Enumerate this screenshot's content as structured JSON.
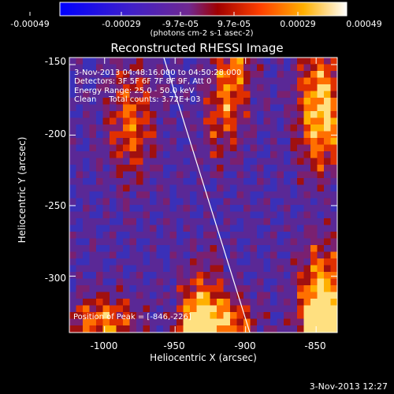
{
  "chart_data": {
    "type": "heatmap",
    "title": "Reconstructed RHESSI Image",
    "xlabel": "Heliocentric X (arcsec)",
    "ylabel": "Heliocentric Y (arcsec)",
    "xlim": [
      -1025,
      -835
    ],
    "ylim": [
      -340,
      -145
    ],
    "xticks": [
      "-1000",
      "-950",
      "-900",
      "-850"
    ],
    "yticks": [
      "-150",
      "-200",
      "-250",
      "-300"
    ],
    "colorbar": {
      "range": [
        -0.00049,
        0.00049
      ],
      "tick_labels": [
        "-0.00049",
        "-0.00029",
        "-9.7e-05",
        "9.7e-05",
        "0.00029",
        "0.00049"
      ],
      "unit_label": "(photons cm-2 s-1 asec-2)"
    },
    "info_lines": [
      "3-Nov-2013 04:48:16.000 to 04:50:28.000",
      "Detectors: 3F 5F 6F 7F 8F 9F, Att 0",
      "Energy Range: 25.0 - 50.0 keV",
      "Clean     Total counts: 3.72E+03"
    ],
    "peak_label": "Position of Peak = [-846,-226]",
    "limb_line": [
      {
        "x": -958,
        "y": -145
      },
      {
        "x": -897,
        "y": -340
      }
    ],
    "peak": {
      "x": -846,
      "y": -226
    }
  },
  "footer_timestamp": "3-Nov-2013 12:27"
}
